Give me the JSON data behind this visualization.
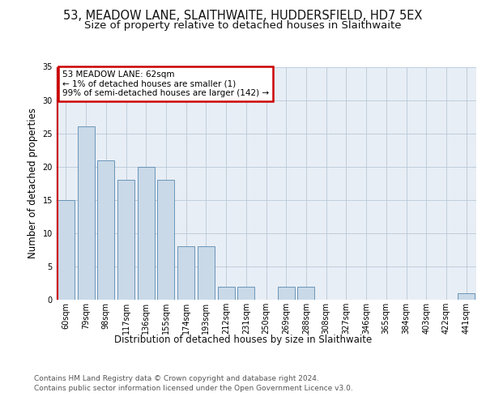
{
  "title_line1": "53, MEADOW LANE, SLAITHWAITE, HUDDERSFIELD, HD7 5EX",
  "title_line2": "Size of property relative to detached houses in Slaithwaite",
  "xlabel": "Distribution of detached houses by size in Slaithwaite",
  "ylabel": "Number of detached properties",
  "categories": [
    "60sqm",
    "79sqm",
    "98sqm",
    "117sqm",
    "136sqm",
    "155sqm",
    "174sqm",
    "193sqm",
    "212sqm",
    "231sqm",
    "250sqm",
    "269sqm",
    "288sqm",
    "308sqm",
    "327sqm",
    "346sqm",
    "365sqm",
    "384sqm",
    "403sqm",
    "422sqm",
    "441sqm"
  ],
  "values": [
    15,
    26,
    21,
    18,
    20,
    18,
    8,
    8,
    2,
    2,
    0,
    2,
    2,
    0,
    0,
    0,
    0,
    0,
    0,
    0,
    1
  ],
  "bar_color": "#c9d9e8",
  "bar_edge_color": "#5a8ab0",
  "highlight_line_color": "#cc0000",
  "annotation_text": "53 MEADOW LANE: 62sqm\n← 1% of detached houses are smaller (1)\n99% of semi-detached houses are larger (142) →",
  "annotation_box_color": "#ffffff",
  "annotation_box_edge_color": "#cc0000",
  "ylim": [
    0,
    35
  ],
  "yticks": [
    0,
    5,
    10,
    15,
    20,
    25,
    30,
    35
  ],
  "plot_bg_color": "#e8eef5",
  "footer_line1": "Contains HM Land Registry data © Crown copyright and database right 2024.",
  "footer_line2": "Contains public sector information licensed under the Open Government Licence v3.0.",
  "title_fontsize": 10.5,
  "subtitle_fontsize": 9.5,
  "tick_fontsize": 7,
  "ylabel_fontsize": 8.5,
  "xlabel_fontsize": 8.5,
  "footer_fontsize": 6.5
}
